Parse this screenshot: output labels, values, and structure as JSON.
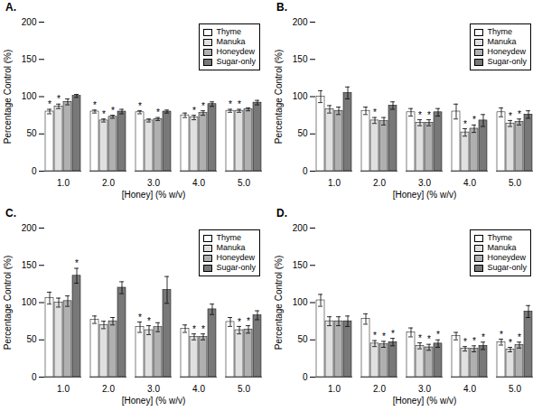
{
  "chart_data": [
    {
      "type": "bar",
      "title": "A.",
      "xlabel": "[Honey] (% w/v)",
      "ylabel": "Percentage Control (%)",
      "categories": [
        "1.0",
        "2.0",
        "3.0",
        "4.0",
        "5.0"
      ],
      "series": [
        {
          "name": "Thyme",
          "color": "#ffffff",
          "values": [
            80,
            80,
            79,
            75,
            81
          ],
          "errors": [
            3,
            2,
            2,
            3,
            2
          ]
        },
        {
          "name": "Manuka",
          "color": "#e0e0e0",
          "values": [
            87,
            68,
            68,
            72,
            81
          ],
          "errors": [
            3,
            2,
            2,
            3,
            2
          ]
        },
        {
          "name": "Honeydew",
          "color": "#b0b0b0",
          "values": [
            93,
            73,
            70,
            78,
            83
          ],
          "errors": [
            4,
            2,
            2,
            3,
            2
          ]
        },
        {
          "name": "Sugar-only",
          "color": "#787878",
          "values": [
            101,
            80,
            80,
            90,
            92
          ],
          "errors": [
            2,
            3,
            2,
            3,
            3
          ]
        }
      ],
      "ylim": [
        0,
        200
      ],
      "yticks": [
        0,
        50,
        100,
        150,
        200
      ],
      "legend": "upper right",
      "annotations": [
        {
          "category": "1.0",
          "series": "Thyme",
          "text": "*"
        },
        {
          "category": "1.0",
          "series": "Manuka",
          "text": "*"
        },
        {
          "category": "2.0",
          "series": "Thyme",
          "text": "*"
        },
        {
          "category": "2.0",
          "series": "Manuka",
          "text": "*"
        },
        {
          "category": "2.0",
          "series": "Honeydew",
          "text": "*"
        },
        {
          "category": "3.0",
          "series": "Thyme",
          "text": "*"
        },
        {
          "category": "3.0",
          "series": "Honeydew",
          "text": "*"
        },
        {
          "category": "4.0",
          "series": "Manuka",
          "text": "*"
        },
        {
          "category": "4.0",
          "series": "Honeydew",
          "text": "*"
        },
        {
          "category": "5.0",
          "series": "Thyme",
          "text": "*"
        },
        {
          "category": "5.0",
          "series": "Manuka",
          "text": "*"
        }
      ]
    },
    {
      "type": "bar",
      "title": "B.",
      "xlabel": "[Honey] (% w/v)",
      "ylabel": "Percentage Control (%)",
      "categories": [
        "1.0",
        "2.0",
        "3.0",
        "4.0",
        "5.0"
      ],
      "series": [
        {
          "name": "Thyme",
          "color": "#ffffff",
          "values": [
            100,
            81,
            79,
            80,
            79
          ],
          "errors": [
            8,
            5,
            5,
            10,
            6
          ]
        },
        {
          "name": "Manuka",
          "color": "#e0e0e0",
          "values": [
            83,
            68,
            65,
            52,
            64
          ],
          "errors": [
            5,
            4,
            4,
            5,
            4
          ]
        },
        {
          "name": "Honeydew",
          "color": "#b0b0b0",
          "values": [
            81,
            67,
            65,
            57,
            66
          ],
          "errors": [
            5,
            5,
            4,
            5,
            4
          ]
        },
        {
          "name": "Sugar-only",
          "color": "#787878",
          "values": [
            105,
            88,
            79,
            68,
            76
          ],
          "errors": [
            8,
            5,
            5,
            8,
            5
          ]
        }
      ],
      "ylim": [
        0,
        200
      ],
      "yticks": [
        0,
        50,
        100,
        150,
        200
      ],
      "legend": "upper right",
      "annotations": [
        {
          "category": "2.0",
          "series": "Manuka",
          "text": "*"
        },
        {
          "category": "3.0",
          "series": "Manuka",
          "text": "*"
        },
        {
          "category": "3.0",
          "series": "Honeydew",
          "text": "*"
        },
        {
          "category": "4.0",
          "series": "Manuka",
          "text": "*"
        },
        {
          "category": "4.0",
          "series": "Honeydew",
          "text": "*"
        },
        {
          "category": "5.0",
          "series": "Manuka",
          "text": "*"
        },
        {
          "category": "5.0",
          "series": "Honeydew",
          "text": "*"
        }
      ]
    },
    {
      "type": "bar",
      "title": "C.",
      "xlabel": "[Honey] (% w/v)",
      "ylabel": "Percentage Control (%)",
      "categories": [
        "1.0",
        "2.0",
        "3.0",
        "4.0",
        "5.0"
      ],
      "series": [
        {
          "name": "Thyme",
          "color": "#ffffff",
          "values": [
            106,
            77,
            67,
            65,
            74
          ],
          "errors": [
            8,
            5,
            7,
            5,
            6
          ]
        },
        {
          "name": "Manuka",
          "color": "#e0e0e0",
          "values": [
            100,
            70,
            63,
            54,
            63
          ],
          "errors": [
            6,
            5,
            6,
            4,
            5
          ]
        },
        {
          "name": "Honeydew",
          "color": "#b0b0b0",
          "values": [
            102,
            75,
            67,
            54,
            64
          ],
          "errors": [
            7,
            5,
            6,
            4,
            5
          ]
        },
        {
          "name": "Sugar-only",
          "color": "#787878",
          "values": [
            136,
            120,
            117,
            91,
            83
          ],
          "errors": [
            10,
            8,
            18,
            7,
            6
          ]
        }
      ],
      "ylim": [
        0,
        200
      ],
      "yticks": [
        0,
        50,
        100,
        150,
        200
      ],
      "legend": "upper right",
      "annotations": [
        {
          "category": "1.0",
          "series": "Sugar-only",
          "text": "*"
        },
        {
          "category": "3.0",
          "series": "Thyme",
          "text": "*"
        },
        {
          "category": "3.0",
          "series": "Manuka",
          "text": "*"
        },
        {
          "category": "4.0",
          "series": "Manuka",
          "text": "*"
        },
        {
          "category": "4.0",
          "series": "Honeydew",
          "text": "*"
        },
        {
          "category": "5.0",
          "series": "Manuka",
          "text": "*"
        },
        {
          "category": "5.0",
          "series": "Honeydew",
          "text": "*"
        }
      ]
    },
    {
      "type": "bar",
      "title": "D.",
      "xlabel": "[Honey] (% w/v)",
      "ylabel": "Percentage Control (%)",
      "categories": [
        "1.0",
        "2.0",
        "3.0",
        "4.0",
        "5.0"
      ],
      "series": [
        {
          "name": "Thyme",
          "color": "#ffffff",
          "values": [
            103,
            78,
            60,
            55,
            47
          ],
          "errors": [
            8,
            7,
            6,
            5,
            4
          ]
        },
        {
          "name": "Manuka",
          "color": "#e0e0e0",
          "values": [
            75,
            45,
            42,
            38,
            37
          ],
          "errors": [
            6,
            4,
            4,
            3,
            3
          ]
        },
        {
          "name": "Honeydew",
          "color": "#b0b0b0",
          "values": [
            75,
            44,
            40,
            38,
            43
          ],
          "errors": [
            6,
            4,
            4,
            4,
            4
          ]
        },
        {
          "name": "Sugar-only",
          "color": "#787878",
          "values": [
            75,
            47,
            45,
            42,
            88
          ],
          "errors": [
            7,
            5,
            5,
            5,
            8
          ]
        }
      ],
      "ylim": [
        0,
        200
      ],
      "yticks": [
        0,
        50,
        100,
        150,
        200
      ],
      "legend": "upper right",
      "annotations": [
        {
          "category": "2.0",
          "series": "Manuka",
          "text": "*"
        },
        {
          "category": "2.0",
          "series": "Honeydew",
          "text": "*"
        },
        {
          "category": "2.0",
          "series": "Sugar-only",
          "text": "*"
        },
        {
          "category": "3.0",
          "series": "Manuka",
          "text": "*"
        },
        {
          "category": "3.0",
          "series": "Honeydew",
          "text": "*"
        },
        {
          "category": "3.0",
          "series": "Sugar-only",
          "text": "*"
        },
        {
          "category": "4.0",
          "series": "Manuka",
          "text": "*"
        },
        {
          "category": "4.0",
          "series": "Honeydew",
          "text": "*"
        },
        {
          "category": "4.0",
          "series": "Sugar-only",
          "text": "*"
        },
        {
          "category": "5.0",
          "series": "Thyme",
          "text": "*"
        },
        {
          "category": "5.0",
          "series": "Manuka",
          "text": "*"
        },
        {
          "category": "5.0",
          "series": "Honeydew",
          "text": "*"
        }
      ]
    }
  ]
}
